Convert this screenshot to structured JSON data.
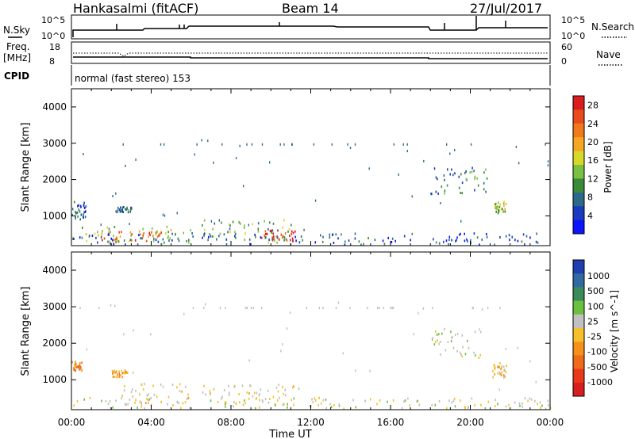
{
  "header": {
    "station": "Hankasalmi (fitACF)",
    "beam": "Beam 14",
    "date": "27/Jul/2017"
  },
  "top_panels": {
    "nsky_label": "N.Sky",
    "nsky_ticks": [
      "10^5",
      "10^0"
    ],
    "nsearch_label": "N.Search",
    "nsearch_ticks": [
      "10^5",
      "10^0"
    ],
    "freq_label_1": "Freq.",
    "freq_label_2": "[MHz]",
    "freq_ticks": [
      "18",
      "8"
    ],
    "nave_label": "Nave",
    "nave_ticks": [
      "60",
      "0"
    ],
    "cpid_label": "CPID",
    "cpid_text": "normal (fast stereo) 153"
  },
  "chart_data": [
    {
      "type": "heatmap",
      "title": "",
      "xlabel": "Time UT",
      "ylabel": "Slant Range [km]",
      "xlim": [
        "00:00",
        "24:00"
      ],
      "ylim": [
        180,
        4500
      ],
      "x_ticks": [
        "00:00",
        "04:00",
        "08:00",
        "12:00",
        "16:00",
        "20:00",
        "00:00"
      ],
      "y_ticks": [
        1000,
        2000,
        3000,
        4000
      ],
      "colorbar_label": "Power [dB]",
      "colorbar_ticks": [
        4,
        8,
        12,
        16,
        20,
        24,
        28
      ],
      "colorbar_range": [
        0,
        30
      ],
      "colors": [
        "#0a14ff",
        "#1a3ac0",
        "#2d6a8a",
        "#3a8a3a",
        "#7ac142",
        "#d8d82a",
        "#f5a623",
        "#f07a1a",
        "#e84c1a",
        "#d81e1e"
      ],
      "regions": [
        {
          "t0": 0.0,
          "t1": 0.7,
          "r0": 850,
          "r1": 1450,
          "value": 7
        },
        {
          "t0": 0.0,
          "t1": 6.0,
          "r0": 250,
          "r1": 700,
          "value": 14
        },
        {
          "t0": 1.5,
          "t1": 4.5,
          "r0": 300,
          "r1": 600,
          "value": 24
        },
        {
          "t0": 2.2,
          "t1": 3.0,
          "r0": 1100,
          "r1": 1250,
          "value": 8
        },
        {
          "t0": 6.5,
          "t1": 11.0,
          "r0": 250,
          "r1": 900,
          "value": 12
        },
        {
          "t0": 9.5,
          "t1": 11.2,
          "r0": 300,
          "r1": 600,
          "value": 26
        },
        {
          "t0": 18.0,
          "t1": 21.0,
          "r0": 1600,
          "r1": 2400,
          "value": 9
        },
        {
          "t0": 21.2,
          "t1": 21.8,
          "r0": 1050,
          "r1": 1400,
          "value": 14
        },
        {
          "t0": 0.0,
          "t1": 24.0,
          "r0": 200,
          "r1": 520,
          "value": 6
        }
      ]
    },
    {
      "type": "heatmap",
      "title": "",
      "xlabel": "Time UT",
      "ylabel": "Slant Range [km]",
      "xlim": [
        "00:00",
        "24:00"
      ],
      "ylim": [
        180,
        4500
      ],
      "x_ticks": [
        "00:00",
        "04:00",
        "08:00",
        "12:00",
        "16:00",
        "20:00",
        "00:00"
      ],
      "y_ticks": [
        1000,
        2000,
        3000,
        4000
      ],
      "colorbar_label": "Velocity [m s^-1]",
      "colorbar_ticks": [
        1000,
        500,
        100,
        25,
        -25,
        -100,
        -500,
        -1000
      ],
      "colorbar_range": [
        -1200,
        1200
      ],
      "colors": [
        "#1f3fb0",
        "#2f6aa0",
        "#3a8a5a",
        "#6cc040",
        "#c0c0c0",
        "#f5c02a",
        "#f5901a",
        "#f06a1a",
        "#e83a1a",
        "#d81e1e"
      ],
      "regions": [
        {
          "t0": 0.0,
          "t1": 0.5,
          "r0": 1250,
          "r1": 1500,
          "value": -400
        },
        {
          "t0": 2.0,
          "t1": 2.8,
          "r0": 1050,
          "r1": 1250,
          "value": -300
        },
        {
          "t0": 2.5,
          "t1": 6.0,
          "r0": 300,
          "r1": 900,
          "value": 0
        },
        {
          "t0": 6.5,
          "t1": 11.5,
          "r0": 300,
          "r1": 900,
          "value": 0
        },
        {
          "t0": 18.0,
          "t1": 20.5,
          "r0": 1600,
          "r1": 2400,
          "value": 150
        },
        {
          "t0": 21.1,
          "t1": 21.8,
          "r0": 1050,
          "r1": 1450,
          "value": -150
        },
        {
          "t0": 0.0,
          "t1": 24.0,
          "r0": 200,
          "r1": 500,
          "value": 50
        }
      ]
    }
  ]
}
